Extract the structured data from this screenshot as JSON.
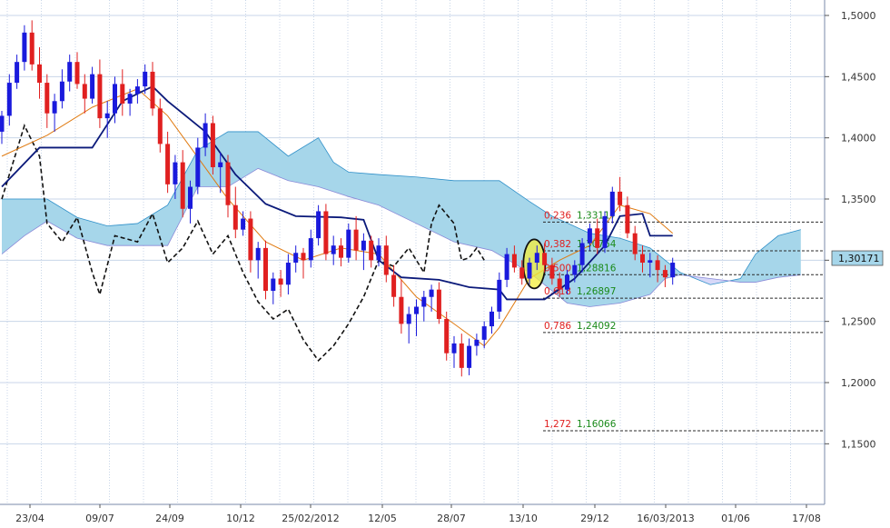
{
  "chart_data": {
    "type": "candlestick",
    "title": "",
    "xlabel": "",
    "ylabel": "",
    "ylim": [
      1.1,
      1.52
    ],
    "x_ticks": [
      "23/04",
      "09/07",
      "24/09",
      "10/12",
      "25/02/2012",
      "12/05",
      "28/07",
      "13/10",
      "29/12",
      "16/03/2013",
      "01/06",
      "17/08"
    ],
    "y_ticks": [
      "1,5000",
      "1,4500",
      "1,4000",
      "1,3500",
      "1,3000",
      "1,2500",
      "1,2000",
      "1,1500"
    ],
    "y_tick_values": [
      1.5,
      1.45,
      1.4,
      1.35,
      1.3,
      1.25,
      1.2,
      1.15
    ],
    "current_price": {
      "label": "1,30171",
      "value": 1.30171
    },
    "candles": [
      [
        1.405,
        1.422,
        1.395,
        1.418
      ],
      [
        1.418,
        1.452,
        1.41,
        1.445
      ],
      [
        1.445,
        1.468,
        1.44,
        1.462
      ],
      [
        1.462,
        1.492,
        1.455,
        1.486
      ],
      [
        1.486,
        1.496,
        1.455,
        1.46
      ],
      [
        1.46,
        1.474,
        1.432,
        1.445
      ],
      [
        1.445,
        1.452,
        1.408,
        1.42
      ],
      [
        1.42,
        1.436,
        1.405,
        1.43
      ],
      [
        1.43,
        1.456,
        1.424,
        1.446
      ],
      [
        1.446,
        1.468,
        1.438,
        1.462
      ],
      [
        1.462,
        1.47,
        1.44,
        1.444
      ],
      [
        1.444,
        1.452,
        1.42,
        1.432
      ],
      [
        1.432,
        1.458,
        1.428,
        1.452
      ],
      [
        1.452,
        1.464,
        1.408,
        1.416
      ],
      [
        1.416,
        1.43,
        1.4,
        1.42
      ],
      [
        1.42,
        1.45,
        1.412,
        1.444
      ],
      [
        1.444,
        1.456,
        1.418,
        1.428
      ],
      [
        1.428,
        1.44,
        1.418,
        1.436
      ],
      [
        1.436,
        1.448,
        1.428,
        1.442
      ],
      [
        1.442,
        1.46,
        1.436,
        1.454
      ],
      [
        1.454,
        1.462,
        1.418,
        1.424
      ],
      [
        1.424,
        1.432,
        1.388,
        1.395
      ],
      [
        1.395,
        1.405,
        1.355,
        1.362
      ],
      [
        1.362,
        1.386,
        1.35,
        1.38
      ],
      [
        1.38,
        1.39,
        1.335,
        1.342
      ],
      [
        1.342,
        1.365,
        1.33,
        1.36
      ],
      [
        1.36,
        1.4,
        1.354,
        1.392
      ],
      [
        1.392,
        1.42,
        1.385,
        1.412
      ],
      [
        1.412,
        1.418,
        1.37,
        1.376
      ],
      [
        1.376,
        1.388,
        1.355,
        1.38
      ],
      [
        1.38,
        1.386,
        1.335,
        1.345
      ],
      [
        1.345,
        1.36,
        1.318,
        1.325
      ],
      [
        1.325,
        1.34,
        1.32,
        1.334
      ],
      [
        1.334,
        1.34,
        1.29,
        1.3
      ],
      [
        1.3,
        1.315,
        1.285,
        1.31
      ],
      [
        1.31,
        1.316,
        1.268,
        1.275
      ],
      [
        1.275,
        1.29,
        1.264,
        1.285
      ],
      [
        1.285,
        1.292,
        1.27,
        1.28
      ],
      [
        1.28,
        1.305,
        1.272,
        1.298
      ],
      [
        1.298,
        1.312,
        1.29,
        1.306
      ],
      [
        1.306,
        1.31,
        1.285,
        1.3
      ],
      [
        1.3,
        1.325,
        1.294,
        1.318
      ],
      [
        1.318,
        1.345,
        1.312,
        1.34
      ],
      [
        1.34,
        1.346,
        1.3,
        1.305
      ],
      [
        1.305,
        1.32,
        1.296,
        1.312
      ],
      [
        1.312,
        1.318,
        1.295,
        1.302
      ],
      [
        1.302,
        1.33,
        1.298,
        1.325
      ],
      [
        1.325,
        1.336,
        1.3,
        1.308
      ],
      [
        1.308,
        1.322,
        1.292,
        1.316
      ],
      [
        1.316,
        1.32,
        1.294,
        1.3
      ],
      [
        1.3,
        1.318,
        1.295,
        1.312
      ],
      [
        1.312,
        1.32,
        1.282,
        1.288
      ],
      [
        1.288,
        1.296,
        1.262,
        1.27
      ],
      [
        1.27,
        1.284,
        1.24,
        1.248
      ],
      [
        1.248,
        1.262,
        1.232,
        1.256
      ],
      [
        1.256,
        1.268,
        1.238,
        1.262
      ],
      [
        1.262,
        1.275,
        1.25,
        1.27
      ],
      [
        1.27,
        1.28,
        1.258,
        1.276
      ],
      [
        1.276,
        1.282,
        1.248,
        1.252
      ],
      [
        1.252,
        1.258,
        1.218,
        1.224
      ],
      [
        1.224,
        1.238,
        1.212,
        1.232
      ],
      [
        1.232,
        1.24,
        1.205,
        1.212
      ],
      [
        1.212,
        1.236,
        1.206,
        1.23
      ],
      [
        1.23,
        1.24,
        1.222,
        1.235
      ],
      [
        1.235,
        1.25,
        1.228,
        1.246
      ],
      [
        1.246,
        1.262,
        1.24,
        1.258
      ],
      [
        1.258,
        1.29,
        1.252,
        1.284
      ],
      [
        1.284,
        1.31,
        1.278,
        1.305
      ],
      [
        1.305,
        1.312,
        1.29,
        1.294
      ],
      [
        1.294,
        1.3,
        1.28,
        1.285
      ],
      [
        1.285,
        1.302,
        1.28,
        1.298
      ],
      [
        1.298,
        1.312,
        1.292,
        1.306
      ],
      [
        1.306,
        1.314,
        1.29,
        1.296
      ],
      [
        1.296,
        1.302,
        1.28,
        1.285
      ],
      [
        1.285,
        1.29,
        1.27,
        1.276
      ],
      [
        1.276,
        1.292,
        1.272,
        1.288
      ],
      [
        1.288,
        1.3,
        1.282,
        1.296
      ],
      [
        1.296,
        1.318,
        1.29,
        1.314
      ],
      [
        1.314,
        1.33,
        1.308,
        1.326
      ],
      [
        1.326,
        1.334,
        1.305,
        1.31
      ],
      [
        1.31,
        1.34,
        1.306,
        1.336
      ],
      [
        1.336,
        1.36,
        1.33,
        1.356
      ],
      [
        1.356,
        1.368,
        1.34,
        1.345
      ],
      [
        1.345,
        1.352,
        1.318,
        1.322
      ],
      [
        1.322,
        1.328,
        1.3,
        1.305
      ],
      [
        1.305,
        1.312,
        1.29,
        1.298
      ],
      [
        1.298,
        1.306,
        1.286,
        1.3
      ],
      [
        1.3,
        1.304,
        1.282,
        1.292
      ],
      [
        1.292,
        1.296,
        1.278,
        1.286
      ],
      [
        1.286,
        1.302,
        1.28,
        1.298
      ]
    ],
    "tenkan": [
      [
        0,
        1.385
      ],
      [
        6,
        1.402
      ],
      [
        12,
        1.425
      ],
      [
        18,
        1.44
      ],
      [
        22,
        1.418
      ],
      [
        26,
        1.384
      ],
      [
        30,
        1.35
      ],
      [
        35,
        1.315
      ],
      [
        40,
        1.3
      ],
      [
        45,
        1.31
      ],
      [
        50,
        1.305
      ],
      [
        55,
        1.27
      ],
      [
        60,
        1.248
      ],
      [
        64,
        1.23
      ],
      [
        66,
        1.245
      ],
      [
        70,
        1.285
      ],
      [
        74,
        1.3
      ],
      [
        78,
        1.312
      ],
      [
        82,
        1.345
      ],
      [
        86,
        1.338
      ],
      [
        89,
        1.322
      ]
    ],
    "kijun": [
      [
        0,
        1.36
      ],
      [
        5,
        1.392
      ],
      [
        12,
        1.392
      ],
      [
        16,
        1.43
      ],
      [
        20,
        1.442
      ],
      [
        22,
        1.43
      ],
      [
        27,
        1.405
      ],
      [
        31,
        1.37
      ],
      [
        35,
        1.346
      ],
      [
        39,
        1.336
      ],
      [
        45,
        1.335
      ],
      [
        48,
        1.333
      ],
      [
        50,
        1.3
      ],
      [
        53,
        1.286
      ],
      [
        58,
        1.284
      ],
      [
        62,
        1.278
      ],
      [
        66,
        1.276
      ],
      [
        67,
        1.268
      ],
      [
        72,
        1.268
      ],
      [
        76,
        1.285
      ],
      [
        80,
        1.312
      ],
      [
        82,
        1.336
      ],
      [
        85,
        1.338
      ],
      [
        86,
        1.32
      ],
      [
        89,
        1.32
      ]
    ],
    "chikou": [
      [
        0,
        1.35
      ],
      [
        2,
        1.39
      ],
      [
        3,
        1.41
      ],
      [
        5,
        1.385
      ],
      [
        6,
        1.33
      ],
      [
        8,
        1.315
      ],
      [
        10,
        1.335
      ],
      [
        12,
        1.29
      ],
      [
        13,
        1.272
      ],
      [
        15,
        1.32
      ],
      [
        18,
        1.315
      ],
      [
        20,
        1.338
      ],
      [
        22,
        1.298
      ],
      [
        24,
        1.31
      ],
      [
        26,
        1.332
      ],
      [
        28,
        1.305
      ],
      [
        30,
        1.32
      ],
      [
        32,
        1.29
      ],
      [
        34,
        1.266
      ],
      [
        36,
        1.252
      ],
      [
        38,
        1.26
      ],
      [
        40,
        1.235
      ],
      [
        42,
        1.218
      ],
      [
        44,
        1.23
      ],
      [
        46,
        1.248
      ],
      [
        48,
        1.27
      ],
      [
        50,
        1.3
      ],
      [
        52,
        1.295
      ],
      [
        54,
        1.31
      ],
      [
        56,
        1.29
      ],
      [
        57,
        1.33
      ],
      [
        58,
        1.345
      ],
      [
        60,
        1.33
      ],
      [
        61,
        1.3
      ],
      [
        62,
        1.302
      ],
      [
        63,
        1.31
      ],
      [
        64,
        1.3
      ]
    ],
    "senkou_a": [
      [
        0,
        1.35
      ],
      [
        6,
        1.35
      ],
      [
        10,
        1.335
      ],
      [
        14,
        1.328
      ],
      [
        18,
        1.33
      ],
      [
        22,
        1.345
      ],
      [
        26,
        1.39
      ],
      [
        30,
        1.405
      ],
      [
        34,
        1.405
      ],
      [
        38,
        1.385
      ],
      [
        42,
        1.4
      ],
      [
        44,
        1.38
      ],
      [
        46,
        1.372
      ],
      [
        50,
        1.37
      ],
      [
        55,
        1.368
      ],
      [
        60,
        1.365
      ],
      [
        66,
        1.365
      ],
      [
        70,
        1.348
      ],
      [
        73,
        1.336
      ],
      [
        78,
        1.322
      ],
      [
        82,
        1.318
      ],
      [
        86,
        1.31
      ],
      [
        88,
        1.3
      ],
      [
        90,
        1.29
      ],
      [
        94,
        1.28
      ],
      [
        98,
        1.285
      ],
      [
        100,
        1.305
      ],
      [
        103,
        1.32
      ],
      [
        106,
        1.325
      ]
    ],
    "senkou_b": [
      [
        0,
        1.305
      ],
      [
        3,
        1.32
      ],
      [
        6,
        1.332
      ],
      [
        10,
        1.318
      ],
      [
        14,
        1.312
      ],
      [
        18,
        1.312
      ],
      [
        22,
        1.312
      ],
      [
        26,
        1.36
      ],
      [
        30,
        1.36
      ],
      [
        34,
        1.375
      ],
      [
        38,
        1.365
      ],
      [
        42,
        1.36
      ],
      [
        46,
        1.352
      ],
      [
        50,
        1.345
      ],
      [
        55,
        1.33
      ],
      [
        60,
        1.315
      ],
      [
        65,
        1.308
      ],
      [
        70,
        1.29
      ],
      [
        75,
        1.265
      ],
      [
        78,
        1.262
      ],
      [
        82,
        1.265
      ],
      [
        86,
        1.272
      ],
      [
        88,
        1.285
      ],
      [
        90,
        1.288
      ],
      [
        94,
        1.285
      ],
      [
        98,
        1.282
      ],
      [
        100,
        1.282
      ],
      [
        103,
        1.286
      ],
      [
        106,
        1.288
      ]
    ],
    "fibonacci": [
      {
        "ratio": "0,236",
        "price": "1,33117",
        "value": 1.33117
      },
      {
        "ratio": "0,382",
        "price": "1,30764",
        "value": 1.30764
      },
      {
        "ratio": "0,500",
        "price": "1,28816",
        "value": 1.28816
      },
      {
        "ratio": "0,618",
        "price": "1,26897",
        "value": 1.26897
      },
      {
        "ratio": "0,786",
        "price": "1,24092",
        "value": 1.24092
      },
      {
        "ratio": "1,272",
        "price": "1,16066",
        "value": 1.16066
      }
    ],
    "highlight": {
      "candle_index": 71,
      "price": 1.297
    },
    "colors": {
      "up": "#1a1adc",
      "down": "#e02020",
      "tenkan": "#e07a10",
      "kijun": "#0b1a7a",
      "chikou": "#111111",
      "cloud_bull": "#a6d6ea",
      "cloud_bear": "#d7d8f8",
      "grid": "#c8d6e8",
      "highlight": "#f3ee3a",
      "fib_ratio": "#e02020",
      "fib_price": "#1a8a1a"
    }
  }
}
